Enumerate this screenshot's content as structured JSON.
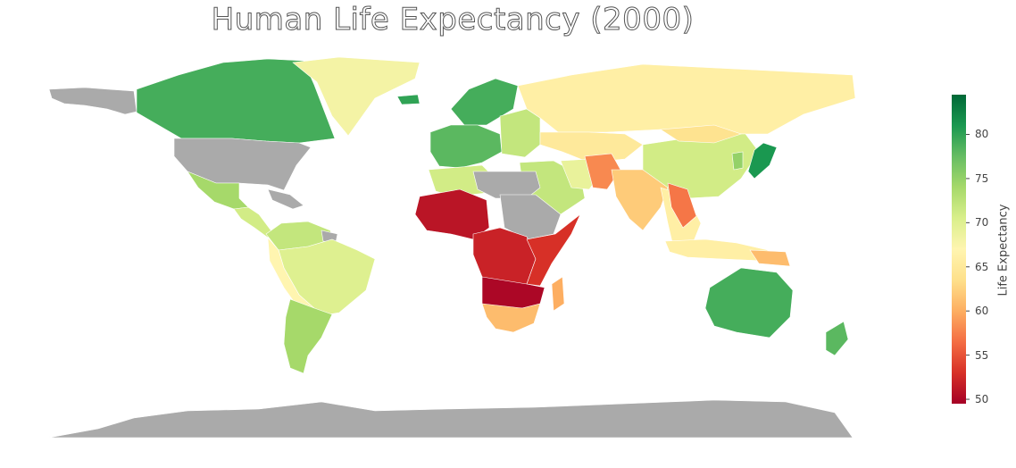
{
  "title": "Human Life Expectancy (2000)",
  "colorbar": {
    "label": "Life Expectancy",
    "min": 49.5,
    "max": 84.5,
    "ticks": [
      50,
      55,
      60,
      65,
      70,
      75,
      80
    ],
    "stops": [
      "#a50026",
      "#d73027",
      "#f46d43",
      "#fdae61",
      "#fee08b",
      "#fff5b0",
      "#d9ef8b",
      "#a6d96a",
      "#66bd63",
      "#1a9850",
      "#006837"
    ]
  },
  "colors": {
    "no_data": "#aaaaaa",
    "ocean": "#ffffff"
  },
  "regions": [
    {
      "name": "Alaska",
      "value": null
    },
    {
      "name": "Canada",
      "value": 79
    },
    {
      "name": "Greenland",
      "value": 68
    },
    {
      "name": "United States",
      "value": null
    },
    {
      "name": "Mexico",
      "value": 74
    },
    {
      "name": "Central America",
      "value": 71
    },
    {
      "name": "Caribbean",
      "value": null
    },
    {
      "name": "Colombia / Venezuela",
      "value": 72
    },
    {
      "name": "Guianas",
      "value": null
    },
    {
      "name": "Brazil",
      "value": 70
    },
    {
      "name": "Peru / Bolivia",
      "value": 67
    },
    {
      "name": "Argentina / Chile",
      "value": 74
    },
    {
      "name": "Iceland",
      "value": 80
    },
    {
      "name": "Scandinavia",
      "value": 79
    },
    {
      "name": "Western Europe",
      "value": 78
    },
    {
      "name": "Eastern Europe",
      "value": 72
    },
    {
      "name": "Russia",
      "value": 66
    },
    {
      "name": "Kazakhstan / Central Asia",
      "value": 65
    },
    {
      "name": "China",
      "value": 71
    },
    {
      "name": "Mongolia",
      "value": 64
    },
    {
      "name": "Japan",
      "value": 81
    },
    {
      "name": "Korea",
      "value": 75
    },
    {
      "name": "Middle East",
      "value": 72
    },
    {
      "name": "Iran",
      "value": 69
    },
    {
      "name": "Afghanistan / Pakistan",
      "value": 58
    },
    {
      "name": "India",
      "value": 62
    },
    {
      "name": "Southeast Asia",
      "value": 66
    },
    {
      "name": "Myanmar / Laos",
      "value": 57
    },
    {
      "name": "Indonesia",
      "value": 66
    },
    {
      "name": "Papua New Guinea",
      "value": 61
    },
    {
      "name": "Australia",
      "value": 79
    },
    {
      "name": "New Zealand",
      "value": 78
    },
    {
      "name": "North Africa",
      "value": 71
    },
    {
      "name": "Libya / Egypt",
      "value": null
    },
    {
      "name": "Sudan / Ethiopia",
      "value": null
    },
    {
      "name": "West Africa",
      "value": 51
    },
    {
      "name": "Central Africa",
      "value": 52
    },
    {
      "name": "East Africa",
      "value": 53
    },
    {
      "name": "Southern Africa",
      "value": 50
    },
    {
      "name": "South Africa",
      "value": 61
    },
    {
      "name": "Madagascar",
      "value": 60
    },
    {
      "name": "Antarctica",
      "value": null
    }
  ]
}
